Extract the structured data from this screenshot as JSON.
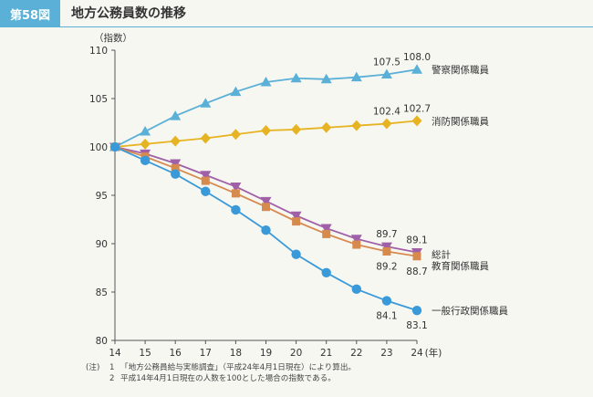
{
  "header": {
    "figure_label": "第58図",
    "title": "地方公務員数の推移"
  },
  "colors": {
    "police": "#5ab0d6",
    "fire": "#e6b422",
    "general": "#3a9ad9",
    "education": "#d78a4e",
    "total": "#a060a8"
  },
  "chart_data": {
    "type": "line",
    "title": "地方公務員数の推移",
    "ylabel": "（指数）",
    "xlabel_unit": "(年)",
    "ylim": [
      80,
      110
    ],
    "yticks": [
      80,
      85,
      90,
      95,
      100,
      105,
      110
    ],
    "x": [
      14,
      15,
      16,
      17,
      18,
      19,
      20,
      21,
      22,
      23,
      24
    ],
    "series": [
      {
        "key": "police",
        "name": "警察関係職員",
        "marker": "triangle-up",
        "color": "#5ab0d6",
        "values": [
          100,
          101.6,
          103.2,
          104.5,
          105.7,
          106.7,
          107.1,
          107.0,
          107.2,
          107.5,
          108.0
        ],
        "labels": [
          {
            "index": 9,
            "text": "107.5",
            "pos": "above"
          },
          {
            "index": 10,
            "text": "108.0",
            "pos": "above"
          }
        ]
      },
      {
        "key": "fire",
        "name": "消防関係職員",
        "marker": "diamond",
        "color": "#e6b422",
        "values": [
          100,
          100.3,
          100.6,
          100.9,
          101.3,
          101.7,
          101.8,
          102.0,
          102.2,
          102.4,
          102.7
        ],
        "labels": [
          {
            "index": 9,
            "text": "102.4",
            "pos": "above"
          },
          {
            "index": 10,
            "text": "102.7",
            "pos": "above"
          }
        ]
      },
      {
        "key": "total",
        "name": "総計",
        "marker": "triangle-down",
        "color": "#a060a8",
        "values": [
          100,
          99.3,
          98.3,
          97.1,
          95.9,
          94.4,
          92.9,
          91.6,
          90.5,
          89.7,
          89.1
        ],
        "labels": [
          {
            "index": 9,
            "text": "89.7",
            "pos": "above"
          },
          {
            "index": 10,
            "text": "89.1",
            "pos": "above"
          }
        ]
      },
      {
        "key": "education",
        "name": "教育関係職員",
        "marker": "square",
        "color": "#d78a4e",
        "values": [
          100,
          99.0,
          97.8,
          96.5,
          95.2,
          93.8,
          92.3,
          91.0,
          89.9,
          89.2,
          88.7
        ],
        "labels": [
          {
            "index": 9,
            "text": "89.2",
            "pos": "below"
          },
          {
            "index": 10,
            "text": "88.7",
            "pos": "below"
          }
        ]
      },
      {
        "key": "general",
        "name": "一般行政関係職員",
        "marker": "circle",
        "color": "#3a9ad9",
        "values": [
          100,
          98.6,
          97.2,
          95.4,
          93.5,
          91.4,
          88.9,
          87.0,
          85.3,
          84.1,
          83.1
        ],
        "labels": [
          {
            "index": 9,
            "text": "84.1",
            "pos": "below"
          },
          {
            "index": 10,
            "text": "83.1",
            "pos": "below"
          }
        ]
      }
    ]
  },
  "notes": {
    "prefix": "(注)",
    "items": [
      {
        "num": "1",
        "text": "「地方公務員給与実態調査」（平成24年4月1日現在）により算出。"
      },
      {
        "num": "2",
        "text": "平成14年4月1日現在の人数を100とした場合の指数である。"
      }
    ]
  }
}
